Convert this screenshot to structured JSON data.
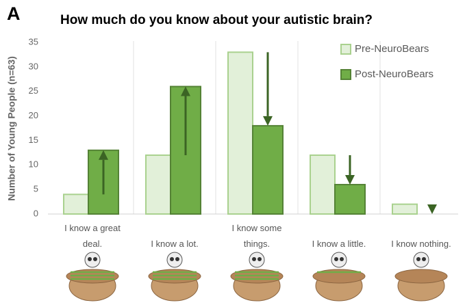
{
  "chart_data": {
    "type": "bar",
    "panel_label": "A",
    "title": "How much do you know about your autistic brain?",
    "y_label": "Number of Young People (n=63)",
    "categories": [
      "I know a great deal.",
      "I know a lot.",
      "I know some things.",
      "I know a little.",
      "I know nothing."
    ],
    "series": [
      {
        "name": "Pre-NeuroBears",
        "color": "#e2f0d9",
        "edge": "#a9d18e",
        "values": [
          4,
          12,
          33,
          12,
          2
        ]
      },
      {
        "name": "Post-NeuroBears",
        "color": "#70ad47",
        "edge": "#548235",
        "values": [
          13,
          26,
          18,
          6,
          0
        ]
      }
    ],
    "ylim": [
      0,
      35
    ],
    "yticks": [
      0,
      5,
      10,
      15,
      20,
      25,
      30,
      35
    ],
    "legend": "top-right"
  }
}
